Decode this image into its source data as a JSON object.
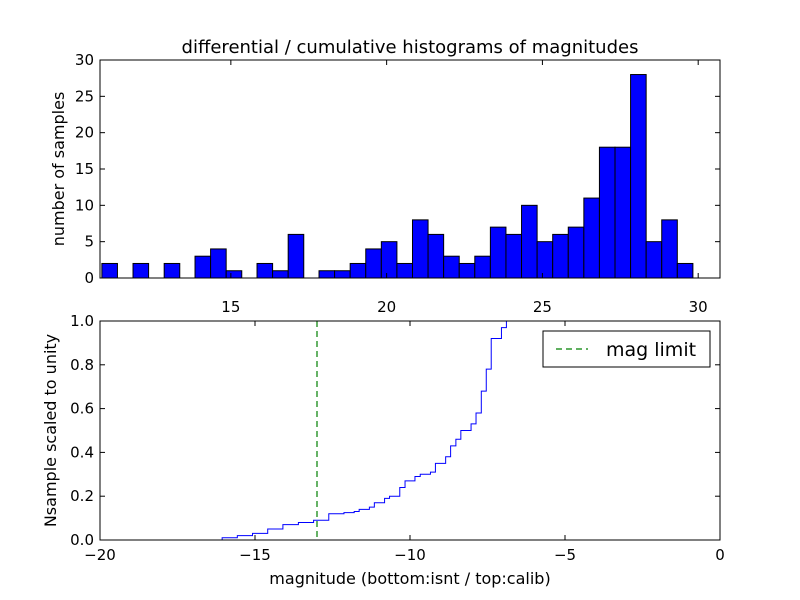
{
  "title": "differential / cumulative histograms of magnitudes",
  "chart_data": [
    {
      "type": "bar",
      "role": "differential histogram (top panel)",
      "ylabel": "number of samples",
      "xlim": [
        10.8,
        30.7
      ],
      "ylim": [
        0,
        30
      ],
      "xticks": [
        15,
        20,
        25,
        30
      ],
      "yticks": [
        0,
        5,
        10,
        15,
        20,
        25,
        30
      ],
      "bar_color": "#0000ff",
      "bins": [
        {
          "x0": 10.86,
          "x1": 11.36,
          "count": 2
        },
        {
          "x0": 11.86,
          "x1": 12.36,
          "count": 2
        },
        {
          "x0": 12.86,
          "x1": 13.36,
          "count": 2
        },
        {
          "x0": 13.85,
          "x1": 14.35,
          "count": 3
        },
        {
          "x0": 14.35,
          "x1": 14.85,
          "count": 4
        },
        {
          "x0": 14.85,
          "x1": 15.35,
          "count": 1
        },
        {
          "x0": 15.84,
          "x1": 16.34,
          "count": 2
        },
        {
          "x0": 16.34,
          "x1": 16.84,
          "count": 1
        },
        {
          "x0": 16.84,
          "x1": 17.34,
          "count": 6
        },
        {
          "x0": 17.83,
          "x1": 18.33,
          "count": 1
        },
        {
          "x0": 18.33,
          "x1": 18.83,
          "count": 1
        },
        {
          "x0": 18.83,
          "x1": 19.33,
          "count": 2
        },
        {
          "x0": 19.33,
          "x1": 19.83,
          "count": 4
        },
        {
          "x0": 19.83,
          "x1": 20.33,
          "count": 5
        },
        {
          "x0": 20.33,
          "x1": 20.83,
          "count": 2
        },
        {
          "x0": 20.83,
          "x1": 21.33,
          "count": 8
        },
        {
          "x0": 21.33,
          "x1": 21.83,
          "count": 6
        },
        {
          "x0": 21.83,
          "x1": 22.33,
          "count": 3
        },
        {
          "x0": 22.33,
          "x1": 22.83,
          "count": 2
        },
        {
          "x0": 22.83,
          "x1": 23.33,
          "count": 3
        },
        {
          "x0": 23.33,
          "x1": 23.83,
          "count": 7
        },
        {
          "x0": 23.83,
          "x1": 24.33,
          "count": 6
        },
        {
          "x0": 24.33,
          "x1": 24.83,
          "count": 10
        },
        {
          "x0": 24.83,
          "x1": 25.33,
          "count": 5
        },
        {
          "x0": 25.33,
          "x1": 25.83,
          "count": 6
        },
        {
          "x0": 25.83,
          "x1": 26.33,
          "count": 7
        },
        {
          "x0": 26.33,
          "x1": 26.83,
          "count": 11
        },
        {
          "x0": 26.83,
          "x1": 27.33,
          "count": 18
        },
        {
          "x0": 27.33,
          "x1": 27.83,
          "count": 18
        },
        {
          "x0": 27.83,
          "x1": 28.33,
          "count": 28
        },
        {
          "x0": 28.33,
          "x1": 28.83,
          "count": 5
        },
        {
          "x0": 28.83,
          "x1": 29.33,
          "count": 8
        },
        {
          "x0": 29.33,
          "x1": 29.83,
          "count": 2
        }
      ]
    },
    {
      "type": "line",
      "role": "cumulative step histogram (bottom panel)",
      "xlabel": "magnitude (bottom:isnt / top:calib)",
      "ylabel": "Nsample scaled to unity",
      "xlim": [
        -20,
        0
      ],
      "ylim": [
        0,
        1.0
      ],
      "xticks": [
        -20,
        -15,
        -10,
        -5,
        0
      ],
      "yticks": [
        0.0,
        0.2,
        0.4,
        0.6,
        0.8,
        1.0
      ],
      "legend_position": "top-right",
      "series": [
        {
          "name": "",
          "style": "step",
          "color": "#0000ff",
          "x": [
            -20.0,
            -16.06,
            -15.57,
            -15.08,
            -14.59,
            -14.1,
            -13.6,
            -13.11,
            -12.62,
            -12.13,
            -11.8,
            -11.64,
            -11.31,
            -11.15,
            -10.82,
            -10.66,
            -10.33,
            -10.16,
            -9.84,
            -9.67,
            -9.34,
            -9.18,
            -8.85,
            -8.69,
            -8.52,
            -8.36,
            -8.03,
            -7.87,
            -7.7,
            -7.54,
            -7.38,
            -7.05,
            -6.89
          ],
          "y": [
            0.0,
            0.01,
            0.02,
            0.03,
            0.05,
            0.07,
            0.08,
            0.09,
            0.12,
            0.125,
            0.13,
            0.14,
            0.15,
            0.17,
            0.19,
            0.2,
            0.24,
            0.27,
            0.29,
            0.3,
            0.31,
            0.35,
            0.38,
            0.43,
            0.46,
            0.5,
            0.53,
            0.58,
            0.68,
            0.78,
            0.92,
            0.97,
            1.0
          ]
        },
        {
          "name": "mag limit",
          "style": "dashed",
          "color": "#008000",
          "x_value": -13.0
        }
      ]
    }
  ]
}
